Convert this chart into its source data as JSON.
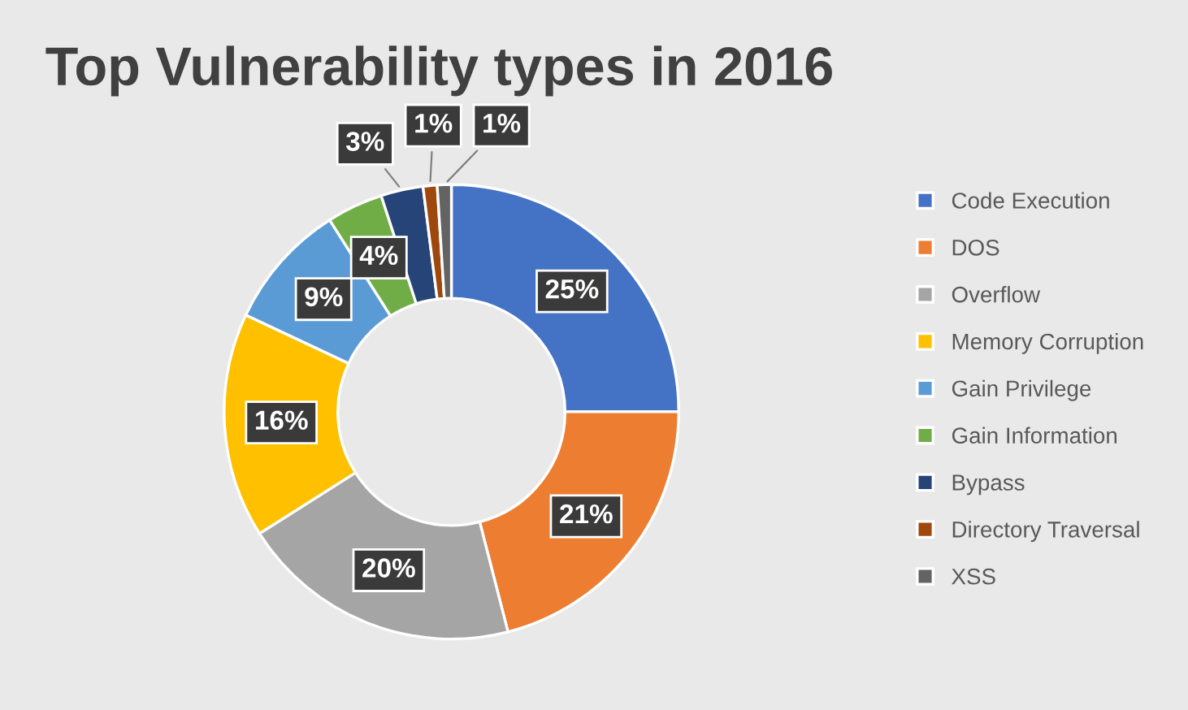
{
  "chart_data": {
    "type": "donut",
    "title": "Top Vulnerability types in 2016",
    "categories": [
      "Code Execution",
      "DOS",
      "Overflow",
      "Memory Corruption",
      "Gain Privilege",
      "Gain Information",
      "Bypass",
      "Directory Traversal",
      "XSS"
    ],
    "values": [
      25,
      21,
      20,
      16,
      9,
      4,
      3,
      1,
      1
    ],
    "colors": [
      "#4472c4",
      "#ed7d31",
      "#a5a5a5",
      "#ffc000",
      "#5b9bd5",
      "#70ad47",
      "#264478",
      "#9e480e",
      "#636363"
    ],
    "value_labels": [
      "25%",
      "21%",
      "20%",
      "16%",
      "9%",
      "4%",
      "3%",
      "1%",
      "1%"
    ],
    "legend": "right"
  }
}
